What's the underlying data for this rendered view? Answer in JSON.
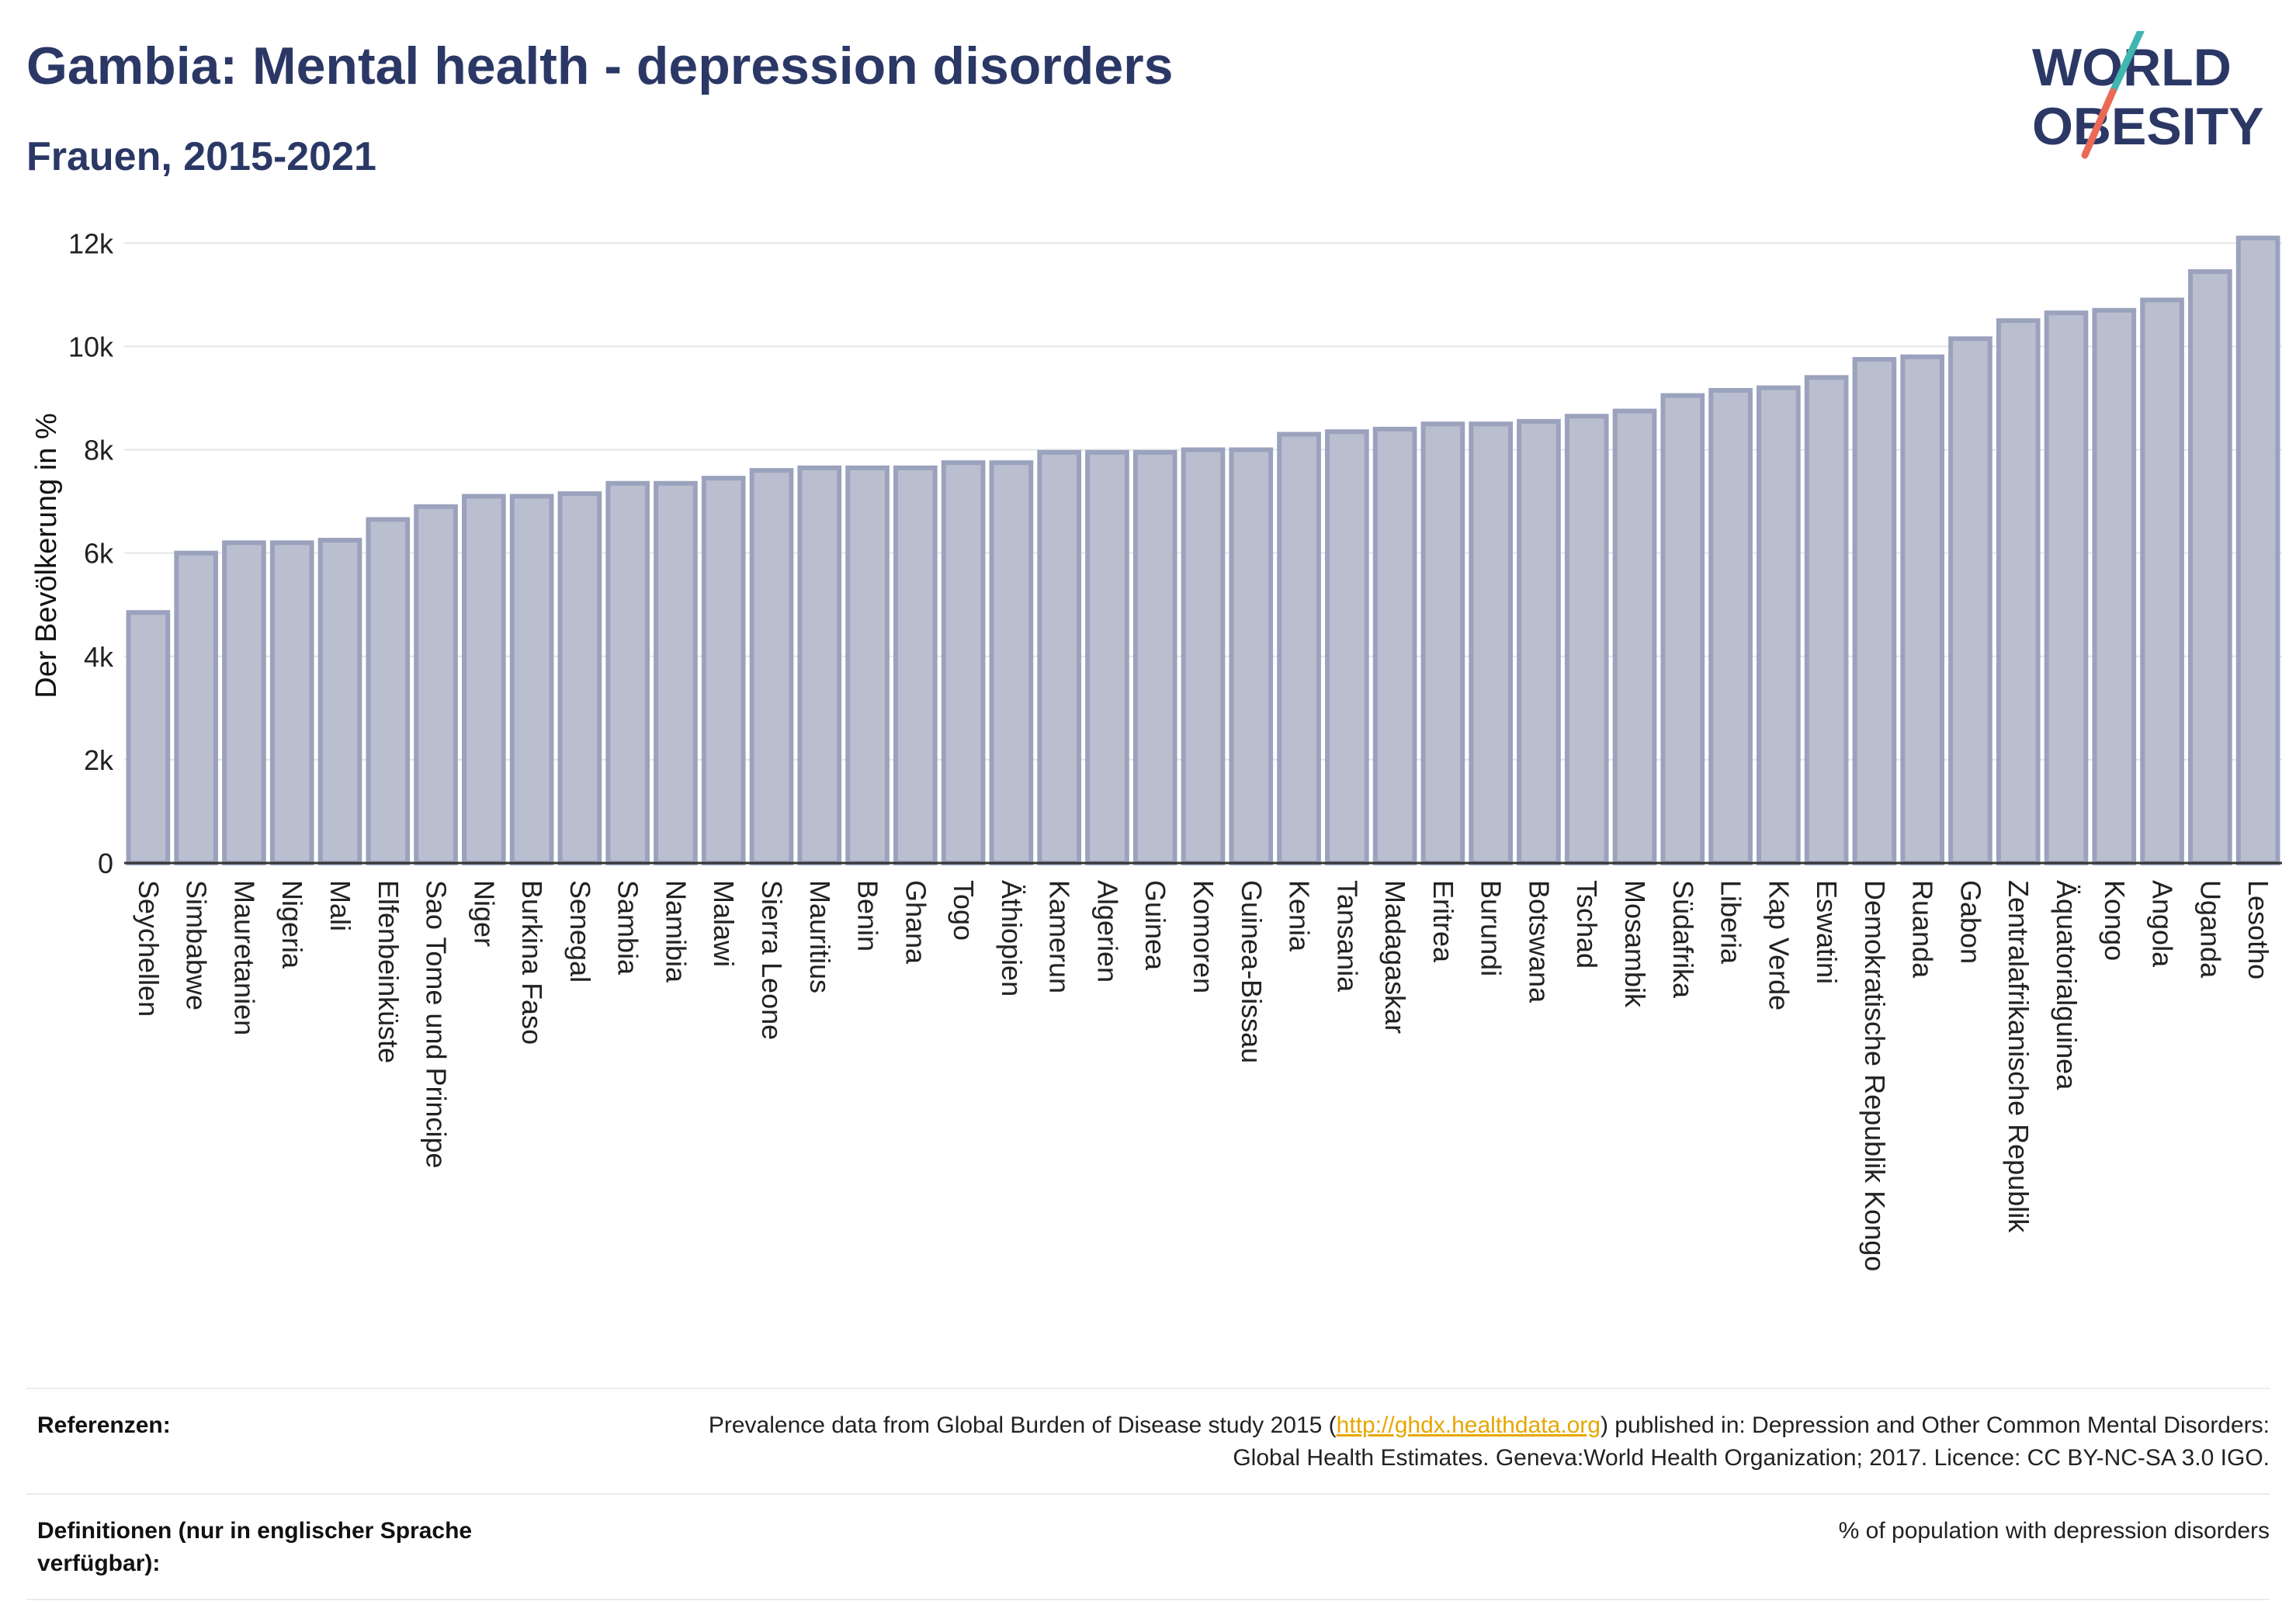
{
  "header": {
    "title": "Gambia: Mental health - depression disorders",
    "subtitle": "Frauen, 2015-2021"
  },
  "logo": {
    "line1": "WORLD",
    "line2": "OBESITY"
  },
  "colors": {
    "bar_fill": "#b9bfcf",
    "bar_stroke": "#9aa2bd",
    "title": "#2b3866",
    "link": "#e6a700"
  },
  "chart_data": {
    "type": "bar",
    "ylabel": "Der Bevölkerung in %",
    "xlabel": "",
    "ylim": [
      0,
      12500
    ],
    "yticks": [
      0,
      2000,
      4000,
      6000,
      8000,
      10000,
      12000
    ],
    "ytick_labels": [
      "0",
      "2k",
      "4k",
      "6k",
      "8k",
      "10k",
      "12k"
    ],
    "grid": true,
    "categories": [
      "Seychellen",
      "Simbabwe",
      "Mauretanien",
      "Nigeria",
      "Mali",
      "Elfenbeinküste",
      "Sao Tome und Principe",
      "Niger",
      "Burkina Faso",
      "Senegal",
      "Sambia",
      "Namibia",
      "Malawi",
      "Sierra Leone",
      "Mauritius",
      "Benin",
      "Ghana",
      "Togo",
      "Äthiopien",
      "Kamerun",
      "Algerien",
      "Guinea",
      "Komoren",
      "Guinea-Bissau",
      "Kenia",
      "Tansania",
      "Madagaskar",
      "Eritrea",
      "Burundi",
      "Botswana",
      "Tschad",
      "Mosambik",
      "Südafrika",
      "Liberia",
      "Kap Verde",
      "Eswatini",
      "Demokratische Republik Kongo",
      "Ruanda",
      "Gabon",
      "Zentralafrikanische Republik",
      "Äquatorialguinea",
      "Kongo",
      "Angola",
      "Uganda",
      "Lesotho"
    ],
    "values": [
      4850,
      6000,
      6200,
      6200,
      6250,
      6650,
      6900,
      7100,
      7100,
      7150,
      7350,
      7350,
      7450,
      7600,
      7650,
      7650,
      7650,
      7750,
      7750,
      7950,
      7950,
      7950,
      8000,
      8000,
      8300,
      8350,
      8400,
      8500,
      8500,
      8550,
      8650,
      8750,
      9050,
      9150,
      9200,
      9400,
      9750,
      9800,
      10150,
      10500,
      10650,
      10700,
      10900,
      11450,
      12100
    ]
  },
  "footer": {
    "references_label": "Referenzen:",
    "references_text_before": "Prevalence data from Global Burden of Disease study 2015 (",
    "references_link": "http://ghdx.healthdata.org",
    "references_text_after": ") published in: Depression and Other Common Mental Disorders: Global Health Estimates. Geneva:World Health Organization; 2017. Licence: CC BY-NC-SA 3.0 IGO.",
    "definitions_label": "Definitionen (nur in englischer Sprache verfügbar):",
    "definitions_text": "% of population with depression disorders"
  }
}
